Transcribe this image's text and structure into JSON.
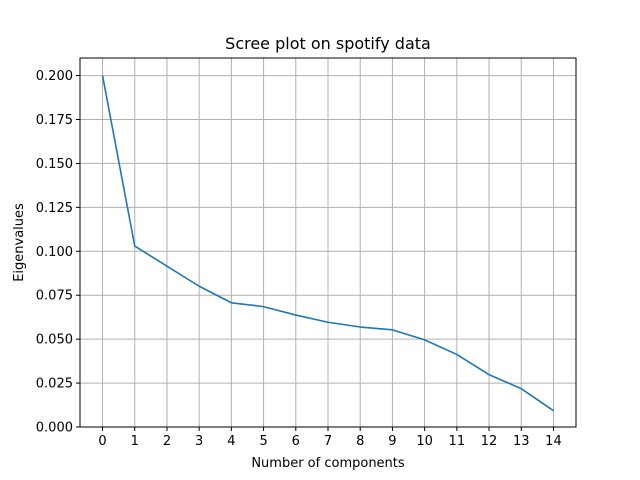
{
  "chart_data": {
    "type": "line",
    "title": "Scree plot on spotify data",
    "xlabel": "Number of components",
    "ylabel": "Eigenvalues",
    "x": [
      0,
      1,
      2,
      3,
      4,
      5,
      6,
      7,
      8,
      9,
      10,
      11,
      12,
      13,
      14
    ],
    "series": [
      {
        "values": [
          0.2,
          0.103,
          0.0915,
          0.0801,
          0.0707,
          0.0685,
          0.0637,
          0.0596,
          0.0569,
          0.0553,
          0.0496,
          0.0413,
          0.0298,
          0.0218,
          0.0093
        ],
        "color": "#1f77b4"
      }
    ],
    "xlim": [
      -0.7,
      14.7
    ],
    "ylim": [
      0.0,
      0.21
    ],
    "xticks": [
      "0",
      "1",
      "2",
      "3",
      "4",
      "5",
      "6",
      "7",
      "8",
      "9",
      "10",
      "11",
      "12",
      "13",
      "14"
    ],
    "yticks": [
      "0.000",
      "0.025",
      "0.050",
      "0.075",
      "0.100",
      "0.125",
      "0.150",
      "0.175",
      "0.200"
    ],
    "grid": true,
    "grid_color": "#b0b0b0"
  }
}
